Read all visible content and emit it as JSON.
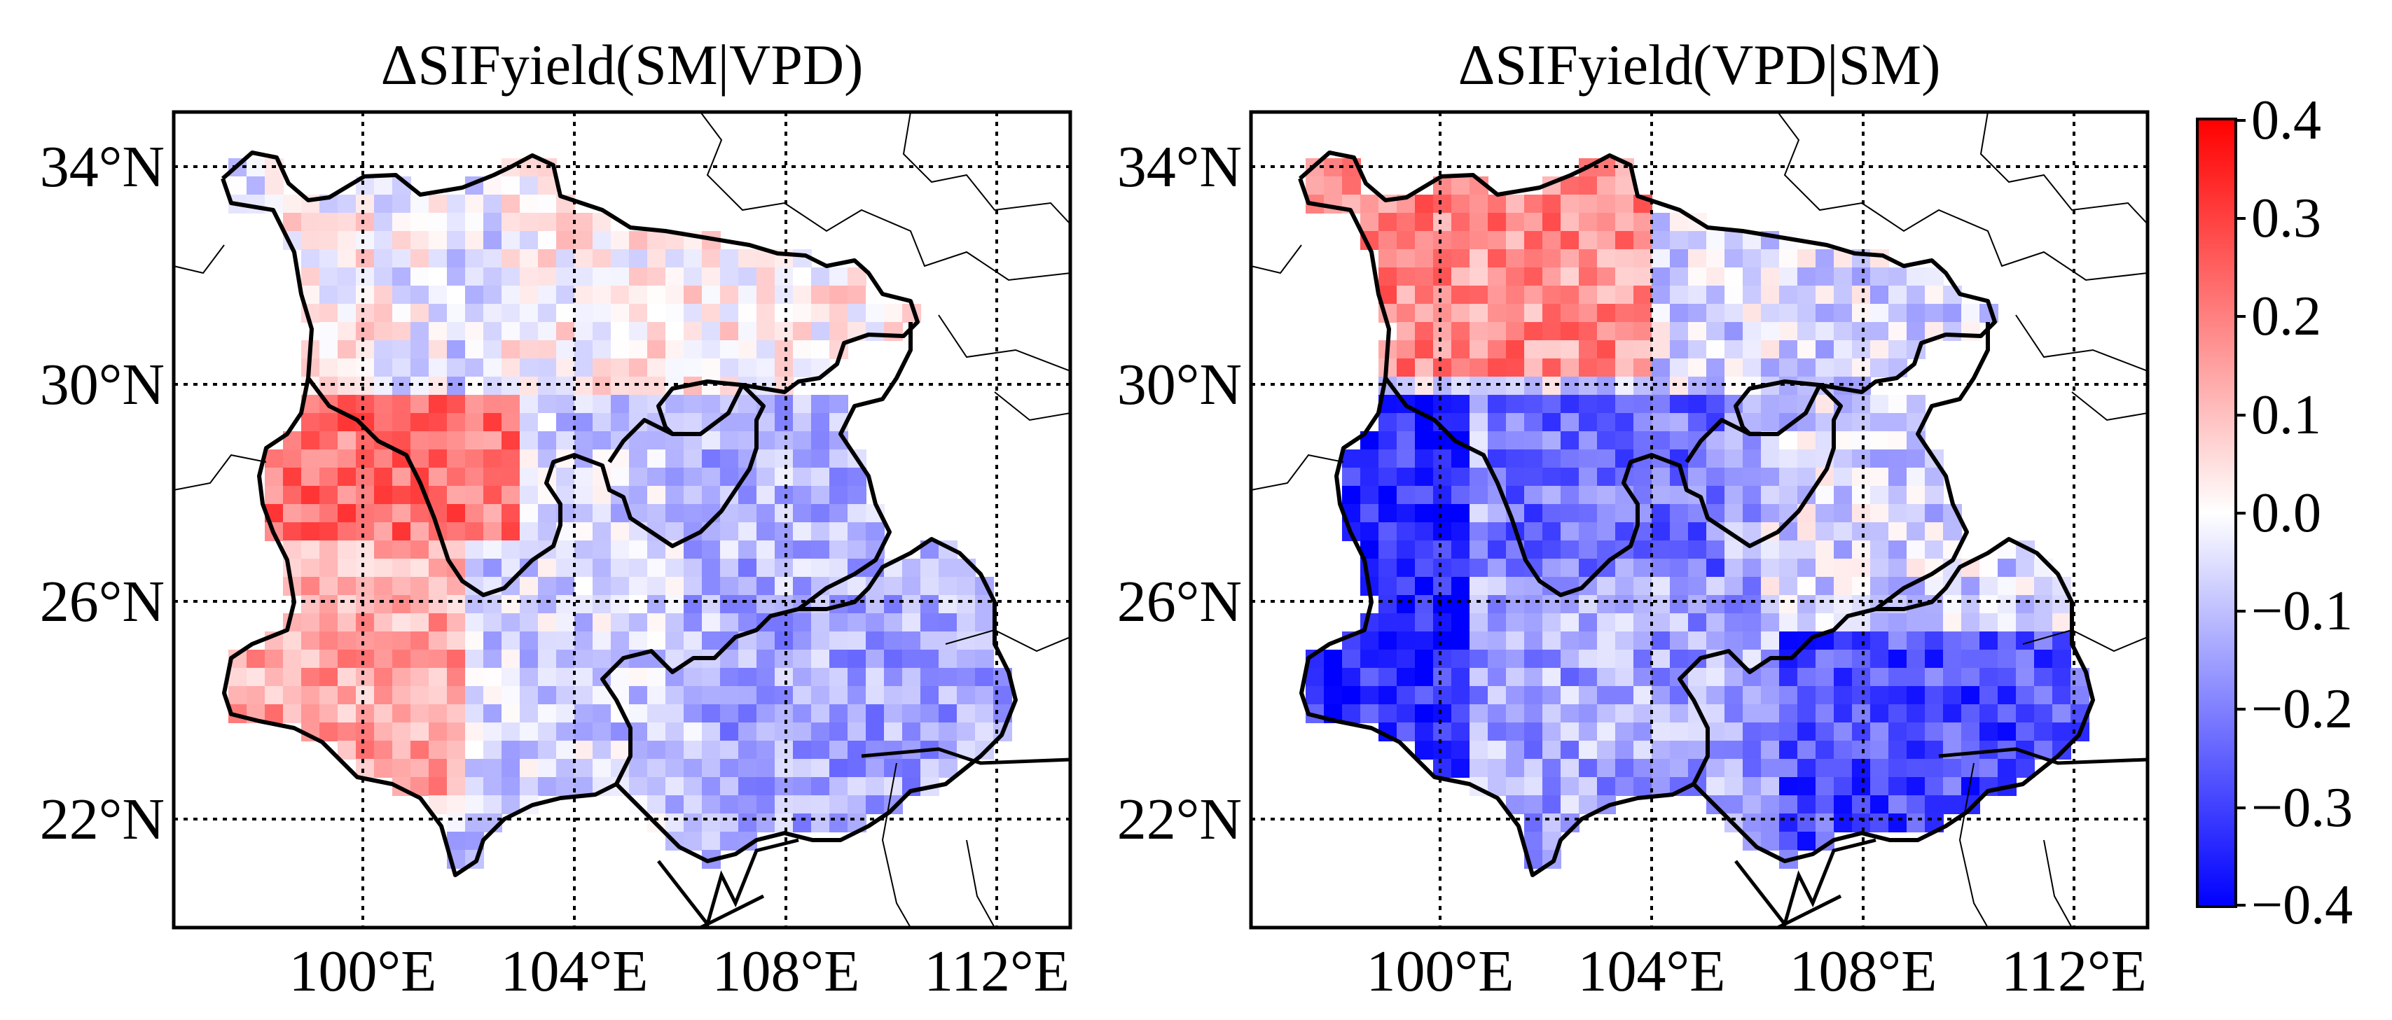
{
  "figure": {
    "panels": [
      {
        "id": "left",
        "title": "ΔSIFyield(SM|VPD)",
        "lat_ticks": [
          "34°N",
          "30°N",
          "26°N",
          "22°N"
        ],
        "lon_ticks": [
          "100°E",
          "104°E",
          "108°E",
          "112°E"
        ]
      },
      {
        "id": "right",
        "title": "ΔSIFyield(VPD|SM)",
        "lat_ticks": [
          "34°N",
          "30°N",
          "26°N",
          "22°N"
        ],
        "lon_ticks": [
          "100°E",
          "104°E",
          "108°E",
          "112°E"
        ]
      }
    ],
    "colorbar": {
      "colors": {
        "max": "#ff0000",
        "mid": "#ffffff",
        "min": "#0000ff"
      },
      "ticks": [
        "0.4",
        "0.3",
        "0.2",
        "0.1",
        "0.0",
        "−0.1",
        "−0.2",
        "−0.3",
        "−0.4"
      ]
    },
    "map_extent": {
      "lon": [
        96.5,
        113.5
      ],
      "lat": [
        20.5,
        35.2
      ]
    }
  }
}
